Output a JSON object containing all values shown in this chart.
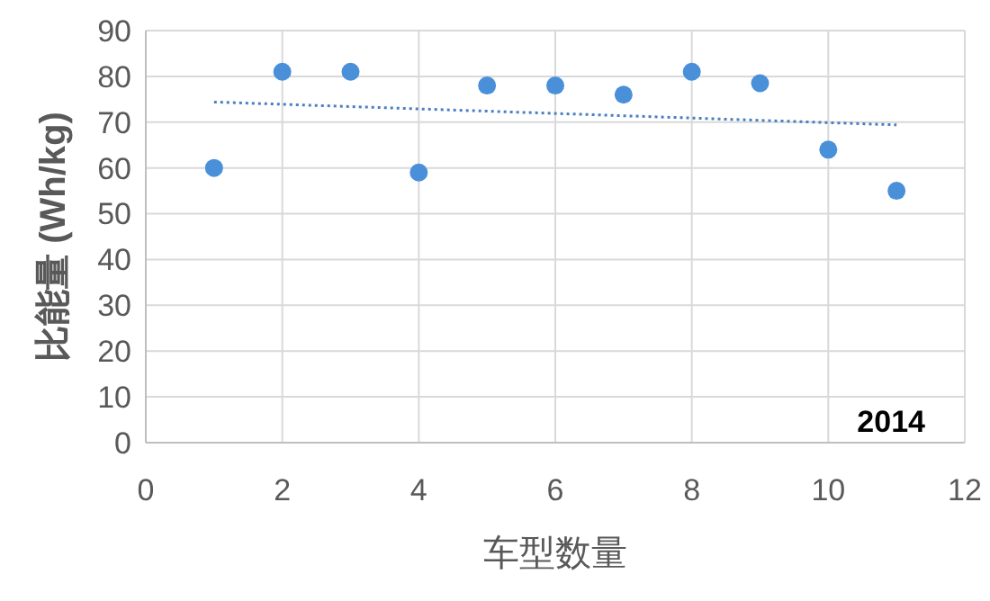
{
  "chart_data": {
    "type": "scatter",
    "xlabel": "车型数量",
    "ylabel": "比能量 (Wh/kg)",
    "xlim": [
      0,
      12
    ],
    "xticks": [
      0,
      2,
      4,
      6,
      8,
      10,
      12
    ],
    "ylim": [
      0,
      90
    ],
    "yticks": [
      0,
      10,
      20,
      30,
      40,
      50,
      60,
      70,
      80,
      90
    ],
    "grid": true,
    "marker": "circle",
    "annotations": [
      "2014"
    ],
    "series": [
      {
        "color": "#4a90d9",
        "x": [
          1,
          2,
          3,
          4,
          5,
          6,
          7,
          8,
          9,
          10,
          11
        ],
        "values": [
          60,
          81,
          81,
          59,
          78,
          78,
          76,
          81,
          78.5,
          64,
          55
        ]
      },
      {
        "type": "line",
        "color": "#4a7fc0",
        "line_style": "dotted",
        "marker": "none",
        "x": [
          1,
          11
        ],
        "values": [
          74.4,
          69.4
        ]
      }
    ]
  }
}
